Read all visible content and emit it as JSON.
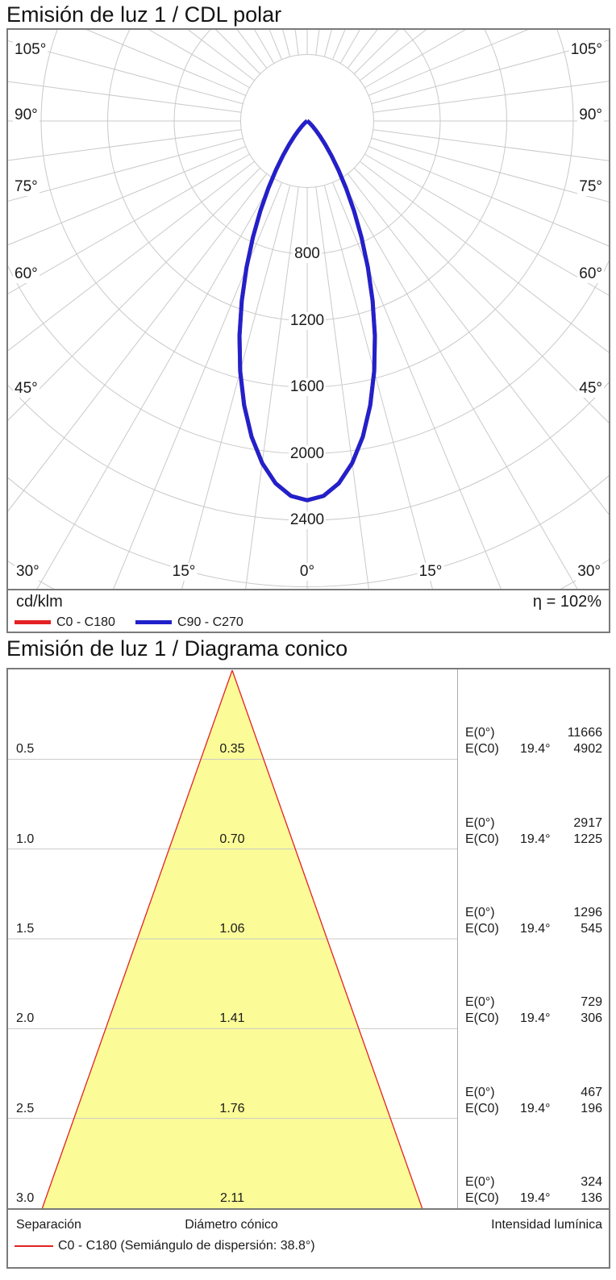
{
  "polar": {
    "title": "Emisión de luz 1 / CDL polar",
    "unit_label": "cd/klm",
    "efficiency_label": "η = 102%",
    "legend": [
      {
        "label": "C0 - C180",
        "color": "#e32222"
      },
      {
        "label": "C90 - C270",
        "color": "#2121cb"
      }
    ],
    "chart_data": {
      "type": "line",
      "subtype": "polar-intensity-diagram",
      "unit": "cd/klm",
      "ring_values": [
        400,
        800,
        1200,
        1600,
        2000,
        2400,
        2800,
        3200
      ],
      "ring_tick_labels": [
        "800",
        "1200",
        "1600",
        "2000",
        "2400"
      ],
      "side_angle_labels": [
        "105°",
        "90°",
        "75°",
        "60°",
        "45°"
      ],
      "bottom_angle_labels": [
        "30°",
        "15°",
        "0°",
        "15°",
        "30°"
      ],
      "angle_grid_step_deg": 7.5,
      "max_intensity_cd_per_klm": 2280,
      "grid_color": "#c9c9c9",
      "series": [
        {
          "name": "C0 - C180",
          "color": "#e32222"
        },
        {
          "name": "C90 - C270",
          "color": "#2121cb"
        }
      ],
      "profile_points_deg_cd": [
        [
          0,
          2280
        ],
        [
          2.5,
          2256
        ],
        [
          5,
          2186
        ],
        [
          7.5,
          2074
        ],
        [
          10,
          1927
        ],
        [
          12.5,
          1751
        ],
        [
          15,
          1557
        ],
        [
          17.5,
          1354
        ],
        [
          20,
          1150
        ],
        [
          22.5,
          954
        ],
        [
          25,
          773
        ],
        [
          27.5,
          610
        ],
        [
          30,
          469
        ],
        [
          32.5,
          350
        ],
        [
          35,
          254
        ],
        [
          37.5,
          179
        ],
        [
          40,
          122
        ],
        [
          42.5,
          80
        ],
        [
          45,
          50
        ],
        [
          47.5,
          31
        ],
        [
          50,
          18
        ],
        [
          52.5,
          10
        ],
        [
          55,
          5
        ],
        [
          57.5,
          2
        ],
        [
          60,
          1
        ],
        [
          65,
          0
        ],
        [
          70,
          0
        ],
        [
          75,
          0
        ],
        [
          80,
          0
        ],
        [
          85,
          0
        ],
        [
          90,
          0
        ]
      ]
    }
  },
  "cone": {
    "title": "Emisión de luz 1 / Diagrama conico",
    "footer": {
      "separation_label": "Separación",
      "diameter_label": "Diámetro cónico",
      "intensity_label": "Intensidad lumínica",
      "legend_label": "C0 - C180 (Semiángulo de dispersión: 38.8°)",
      "legend_color": "#e32222"
    },
    "chart_data": {
      "type": "table",
      "subtype": "cone-diagram",
      "cone_fill": "#fbfb98",
      "cone_edge_color": "#e32222",
      "beam_full_angle_label": "38.8°",
      "e0_label": "E(0°)",
      "ec0_label": "E(C0)",
      "half_angle": "19.4°",
      "rows": [
        {
          "separation": "0.5",
          "diameter": "0.35",
          "e0": "11666",
          "ec0": "4902"
        },
        {
          "separation": "1.0",
          "diameter": "0.70",
          "e0": "2917",
          "ec0": "1225"
        },
        {
          "separation": "1.5",
          "diameter": "1.06",
          "e0": "1296",
          "ec0": "545"
        },
        {
          "separation": "2.0",
          "diameter": "1.41",
          "e0": "729",
          "ec0": "306"
        },
        {
          "separation": "2.5",
          "diameter": "1.76",
          "e0": "467",
          "ec0": "196"
        },
        {
          "separation": "3.0",
          "diameter": "2.11",
          "e0": "324",
          "ec0": "136"
        }
      ]
    }
  }
}
